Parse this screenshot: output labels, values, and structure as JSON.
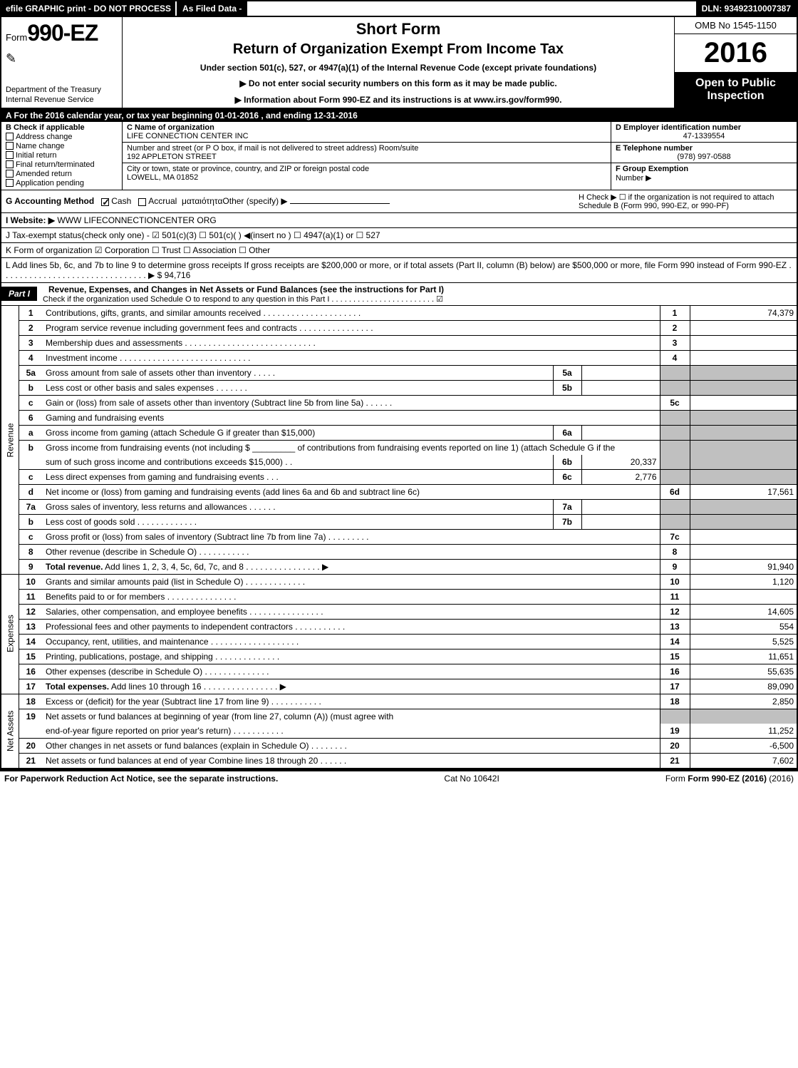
{
  "top_bar": {
    "left": "efile GRAPHIC print - DO NOT PROCESS",
    "mid": "As Filed Data -",
    "right": "DLN: 93492310007387"
  },
  "header": {
    "form_prefix": "Form",
    "form_no": "990-EZ",
    "dept1": "Department of the Treasury",
    "dept2": "Internal Revenue Service",
    "title1": "Short Form",
    "title2": "Return of Organization Exempt From Income Tax",
    "sub": "Under section 501(c), 527, or 4947(a)(1) of the Internal Revenue Code (except private foundations)",
    "arrow1": "▶ Do not enter social security numbers on this form as it may be made public.",
    "arrow2": "▶ Information about Form 990-EZ and its instructions is at www.irs.gov/form990.",
    "omb": "OMB No 1545-1150",
    "year": "2016",
    "open1": "Open to Public",
    "open2": "Inspection"
  },
  "row_a": "A  For the 2016 calendar year, or tax year beginning 01-01-2016             , and ending 12-31-2016",
  "box_b": {
    "title": "B  Check if applicable",
    "items": [
      "Address change",
      "Name change",
      "Initial return",
      "Final return/terminated",
      "Amended return",
      "Application pending"
    ]
  },
  "box_c": {
    "label": "C Name of organization",
    "name": "LIFE CONNECTION CENTER INC",
    "street_label": "Number and street (or P O box, if mail is not delivered to street address)  Room/suite",
    "street": "192 APPLETON STREET",
    "city_label": "City or town, state or province, country, and ZIP or foreign postal code",
    "city": "LOWELL, MA  01852"
  },
  "box_d": {
    "ein_label": "D Employer identification number",
    "ein": "47-1339554",
    "phone_label": "E Telephone number",
    "phone": "(978) 997-0588",
    "group_label": "F Group Exemption",
    "group2": "Number   ▶"
  },
  "row_g": {
    "label": "G Accounting Method",
    "cash": "Cash",
    "accrual": "Accrual",
    "other": "Other (specify) ▶"
  },
  "row_h": {
    "text": "H   Check ▶  ☐  if the organization is not required to attach Schedule B (Form 990, 990-EZ, or 990-PF)"
  },
  "row_i": {
    "label": "I Website: ▶",
    "value": "WWW LIFECONNECTIONCENTER ORG"
  },
  "row_j": "J Tax-exempt status(check only one) - ☑ 501(c)(3) ☐ 501(c)(  ) ◀(insert no ) ☐ 4947(a)(1) or ☐ 527",
  "row_k": "K Form of organization    ☑ Corporation   ☐ Trust   ☐ Association   ☐ Other",
  "row_l": {
    "text": "L Add lines 5b, 6c, and 7b to line 9 to determine gross receipts  If gross receipts are $200,000 or more, or if total assets (Part II, column (B) below) are $500,000 or more, file Form 990 instead of Form 990-EZ . . . . . . . . . . . . . . . . . . . . . . . . . . . . . . . ▶",
    "amount": "$ 94,716"
  },
  "part1": {
    "label": "Part I",
    "title": "Revenue, Expenses, and Changes in Net Assets or Fund Balances (see the instructions for Part I)",
    "check_line": "Check if the organization used Schedule O to respond to any question in this Part I . . . . . . . . . . . . . . . . . . . . . . . .  ☑"
  },
  "sections": {
    "revenue": "Revenue",
    "expenses": "Expenses",
    "netassets": "Net Assets"
  },
  "lines": [
    {
      "n": "1",
      "d": "Contributions, gifts, grants, and similar amounts received . . . . . . . . . . . . . . . . . . . . .",
      "rn": "1",
      "a": "74,379"
    },
    {
      "n": "2",
      "d": "Program service revenue including government fees and contracts . . . . . . . . . . . . . . . .",
      "rn": "2",
      "a": ""
    },
    {
      "n": "3",
      "d": "Membership dues and assessments . . . . . . . . . . . . . . . . . . . . . . . . . . . .",
      "rn": "3",
      "a": ""
    },
    {
      "n": "4",
      "d": "Investment income . . . . . . . . . . . . . . . . . . . . . . . . . . . .",
      "rn": "4",
      "a": ""
    },
    {
      "n": "5a",
      "d": "Gross amount from sale of assets other than inventory . . . . .",
      "sn": "5a",
      "sa": "",
      "shade": true
    },
    {
      "n": "b",
      "d": "Less  cost or other basis and sales expenses . . . . . . .",
      "sn": "5b",
      "sa": "",
      "shade": true
    },
    {
      "n": "c",
      "d": "Gain or (loss) from sale of assets other than inventory (Subtract line 5b from line 5a) . . . . . .",
      "rn": "5c",
      "a": ""
    },
    {
      "n": "6",
      "d": "Gaming and fundraising events",
      "shade": true
    },
    {
      "n": "a",
      "d": "Gross income from gaming (attach Schedule G if greater than $15,000)",
      "sn": "6a",
      "sa": "",
      "shade": true
    },
    {
      "n": "b",
      "d": "Gross income from fundraising events (not including $ _________ of contributions from fundraising events reported on line 1) (attach Schedule G if the",
      "shade": true,
      "noborder": true
    },
    {
      "n": "",
      "d": "sum of such gross income and contributions exceeds $15,000)  .  .",
      "sn": "6b",
      "sa": "20,337",
      "shade": true
    },
    {
      "n": "c",
      "d": "Less  direct expenses from gaming and fundraising events       .  .  .",
      "sn": "6c",
      "sa": "2,776",
      "shade": true
    },
    {
      "n": "d",
      "d": "Net income or (loss) from gaming and fundraising events (add lines 6a and 6b and subtract line 6c)",
      "rn": "6d",
      "a": "17,561"
    },
    {
      "n": "7a",
      "d": "Gross sales of inventory, less returns and allowances . . . . . .",
      "sn": "7a",
      "sa": "",
      "shade": true
    },
    {
      "n": "b",
      "d": "Less  cost of goods sold          .  .  .  .  .  .  .  .  .  .  .  .  .",
      "sn": "7b",
      "sa": "",
      "shade": true
    },
    {
      "n": "c",
      "d": "Gross profit or (loss) from sales of inventory (Subtract line 7b from line 7a) . . . . . . . . .",
      "rn": "7c",
      "a": ""
    },
    {
      "n": "8",
      "d": "Other revenue (describe in Schedule O)                    .  .  .  .  .  .  .  .  .  .  .",
      "rn": "8",
      "a": ""
    },
    {
      "n": "9",
      "d": "Total revenue. Add lines 1, 2, 3, 4, 5c, 6d, 7c, and 8 .  .  .  .  .  .  .  .  .  .  .  .  .  .  .  .   ▶",
      "rn": "9",
      "a": "91,940",
      "bold": true
    }
  ],
  "exp_lines": [
    {
      "n": "10",
      "d": "Grants and similar amounts paid (list in Schedule O)           .  .  .  .  .  .  .  .  .  .  .  .  .",
      "rn": "10",
      "a": "1,120"
    },
    {
      "n": "11",
      "d": "Benefits paid to or for members                    .  .  .  .  .  .  .  .  .  .  .  .  .  .  .",
      "rn": "11",
      "a": ""
    },
    {
      "n": "12",
      "d": "Salaries, other compensation, and employee benefits .  .  .  .  .  .  .  .  .  .  .  .  .  .  .  .",
      "rn": "12",
      "a": "14,605"
    },
    {
      "n": "13",
      "d": "Professional fees and other payments to independent contractors  .  .  .  .  .  .  .  .  .  .  .",
      "rn": "13",
      "a": "554"
    },
    {
      "n": "14",
      "d": "Occupancy, rent, utilities, and maintenance .  .  .  .  .  .  .  .  .  .  .  .  .  .  .  .  .  .  .",
      "rn": "14",
      "a": "5,525"
    },
    {
      "n": "15",
      "d": "Printing, publications, postage, and shipping              .  .  .  .  .  .  .  .  .  .  .  .  .  .",
      "rn": "15",
      "a": "11,651"
    },
    {
      "n": "16",
      "d": "Other expenses (describe in Schedule O)                 .  .  .  .  .  .  .  .  .  .  .  .  .  .",
      "rn": "16",
      "a": "55,635"
    },
    {
      "n": "17",
      "d": "Total expenses. Add lines 10 through 16       .  .  .  .  .  .  .  .  .  .  .  .  .  .  .  .   ▶",
      "rn": "17",
      "a": "89,090",
      "bold": true
    }
  ],
  "na_lines": [
    {
      "n": "18",
      "d": "Excess or (deficit) for the year (Subtract line 17 from line 9)       .  .  .  .  .  .  .  .  .  .  .",
      "rn": "18",
      "a": "2,850"
    },
    {
      "n": "19",
      "d": "Net assets or fund balances at beginning of year (from line 27, column (A)) (must agree with",
      "noborder": true,
      "shade_right": true
    },
    {
      "n": "",
      "d": "end-of-year figure reported on prior year's return)              .  .  .  .  .  .  .  .  .  .  .",
      "rn": "19",
      "a": "11,252"
    },
    {
      "n": "20",
      "d": "Other changes in net assets or fund balances (explain in Schedule O)    .  .  .  .  .  .  .  .",
      "rn": "20",
      "a": "-6,500"
    },
    {
      "n": "21",
      "d": "Net assets or fund balances at end of year  Combine lines 18 through 20       .  .  .  .  .  .",
      "rn": "21",
      "a": "7,602"
    }
  ],
  "footer": {
    "left": "For Paperwork Reduction Act Notice, see the separate instructions.",
    "mid": "Cat No 10642I",
    "right": "Form 990-EZ (2016)"
  }
}
